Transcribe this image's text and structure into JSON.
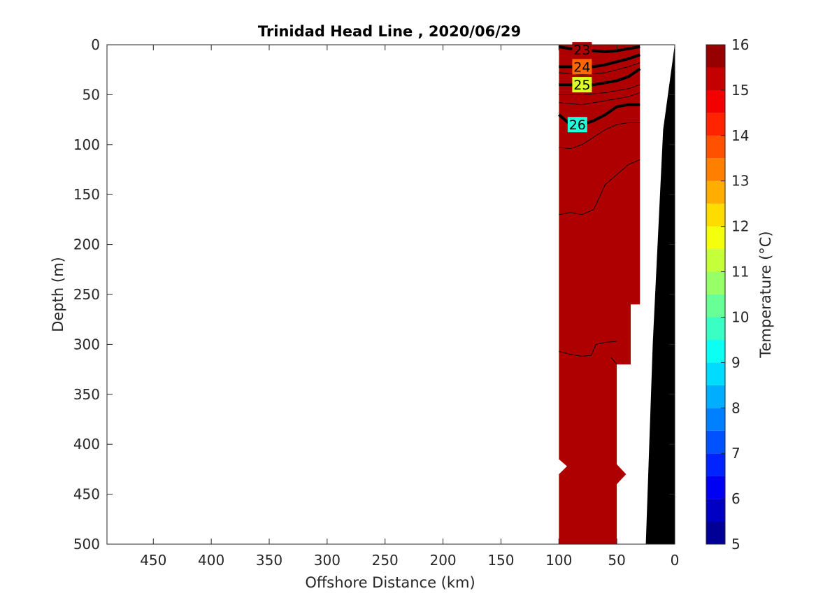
{
  "chart_data": {
    "type": "contour",
    "title": "Trinidad Head Line , 2020/06/29",
    "xlabel": "Offshore Distance (km)",
    "ylabel": "Depth (m)",
    "xlim": [
      490,
      0
    ],
    "ylim": [
      500,
      0
    ],
    "x_reversed": true,
    "y_reversed": true,
    "x_ticks": [
      "450",
      "400",
      "350",
      "300",
      "250",
      "200",
      "150",
      "100",
      "50",
      "0"
    ],
    "y_ticks": [
      "0",
      "50",
      "100",
      "150",
      "200",
      "250",
      "300",
      "350",
      "400",
      "450",
      "500"
    ],
    "colorbar": {
      "label": "Temperature (°C)",
      "min": 5,
      "max": 16,
      "ticks": [
        "5",
        "6",
        "7",
        "8",
        "9",
        "10",
        "11",
        "12",
        "13",
        "14",
        "15",
        "16"
      ],
      "colormap": "jet"
    },
    "temperature_bands": [
      {
        "min_t": 5.0,
        "max_t": 5.5,
        "top": [
          [
            100,
            450
          ],
          [
            80,
            455
          ],
          [
            60,
            460
          ],
          [
            50,
            465
          ]
        ],
        "bottom": 500
      },
      {
        "min_t": 5.5,
        "max_t": 6.0,
        "top": [
          [
            100,
            355
          ],
          [
            80,
            360
          ],
          [
            60,
            375
          ],
          [
            50,
            380
          ]
        ],
        "bottom_is_prev": true
      },
      {
        "min_t": 6.0,
        "max_t": 6.5,
        "top": [
          [
            100,
            275
          ],
          [
            80,
            280
          ],
          [
            60,
            285
          ],
          [
            50,
            295
          ]
        ],
        "bottom_is_prev": true
      },
      {
        "min_t": 6.5,
        "max_t": 7.0,
        "top": [
          [
            100,
            230
          ],
          [
            80,
            230
          ],
          [
            60,
            220
          ],
          [
            40,
            215
          ],
          [
            30,
            210
          ]
        ],
        "bottom_is_prev": true
      },
      {
        "min_t": 7.0,
        "max_t": 7.5,
        "top": [
          [
            100,
            185
          ],
          [
            80,
            185
          ],
          [
            60,
            175
          ],
          [
            40,
            150
          ],
          [
            30,
            145
          ]
        ],
        "bottom_is_prev": true
      },
      {
        "min_t": 7.5,
        "max_t": 8.0,
        "top": [
          [
            100,
            155
          ],
          [
            80,
            150
          ],
          [
            60,
            125
          ],
          [
            40,
            110
          ],
          [
            30,
            105
          ]
        ],
        "bottom_is_prev": true
      },
      {
        "min_t": 8.0,
        "max_t": 8.5,
        "top": [
          [
            100,
            125
          ],
          [
            80,
            120
          ],
          [
            60,
            100
          ],
          [
            40,
            90
          ],
          [
            30,
            85
          ]
        ],
        "bottom_is_prev": true
      },
      {
        "min_t": 8.5,
        "max_t": 9.0,
        "top": [
          [
            100,
            100
          ],
          [
            80,
            95
          ],
          [
            60,
            80
          ],
          [
            40,
            75
          ],
          [
            30,
            70
          ]
        ],
        "bottom_is_prev": true
      },
      {
        "min_t": 9.0,
        "max_t": 10.0,
        "top": [
          [
            100,
            80
          ],
          [
            80,
            75
          ],
          [
            60,
            60
          ],
          [
            40,
            55
          ],
          [
            30,
            50
          ]
        ],
        "bottom_is_prev": true
      },
      {
        "min_t": 10.0,
        "max_t": 11.0,
        "top": [
          [
            100,
            55
          ],
          [
            80,
            55
          ],
          [
            60,
            48
          ],
          [
            40,
            42
          ],
          [
            30,
            38
          ]
        ],
        "bottom_is_prev": true
      },
      {
        "min_t": 11.0,
        "max_t": 12.0,
        "top": [
          [
            100,
            42
          ],
          [
            80,
            42
          ],
          [
            60,
            36
          ],
          [
            40,
            30
          ],
          [
            30,
            26
          ]
        ],
        "bottom_is_prev": true
      },
      {
        "min_t": 12.0,
        "max_t": 13.0,
        "top": [
          [
            100,
            32
          ],
          [
            80,
            32
          ],
          [
            60,
            28
          ],
          [
            40,
            22
          ],
          [
            30,
            18
          ]
        ],
        "bottom_is_prev": true
      },
      {
        "min_t": 13.0,
        "max_t": 14.0,
        "top": [
          [
            100,
            25
          ],
          [
            80,
            25
          ],
          [
            60,
            20
          ],
          [
            40,
            15
          ],
          [
            30,
            12
          ]
        ],
        "bottom_is_prev": true
      },
      {
        "min_t": 14.0,
        "max_t": 15.0,
        "top": [
          [
            100,
            15
          ],
          [
            80,
            15
          ],
          [
            60,
            12
          ],
          [
            40,
            8
          ],
          [
            30,
            6
          ]
        ],
        "bottom_is_prev": true
      },
      {
        "min_t": 15.0,
        "max_t": 16.0,
        "top": [
          [
            100,
            0
          ],
          [
            30,
            0
          ]
        ],
        "bottom_is_prev": true
      }
    ],
    "data_domain": {
      "right_edge": [
        [
          30,
          0
        ],
        [
          30,
          260
        ],
        [
          38,
          260
        ],
        [
          38,
          320
        ],
        [
          50,
          320
        ],
        [
          50,
          420
        ],
        [
          42,
          430
        ],
        [
          50,
          440
        ],
        [
          50,
          500
        ]
      ],
      "left_edge": [
        [
          100,
          0
        ],
        [
          100,
          415
        ],
        [
          93,
          422
        ],
        [
          100,
          430
        ],
        [
          100,
          500
        ]
      ]
    },
    "bathymetry": [
      [
        0,
        0
      ],
      [
        10,
        85
      ],
      [
        19,
        300
      ],
      [
        25,
        500
      ]
    ],
    "density_contours": [
      {
        "label": "23",
        "bold": true,
        "points": [
          [
            100,
            2
          ],
          [
            90,
            4
          ],
          [
            80,
            6
          ],
          [
            70,
            6
          ],
          [
            60,
            7
          ],
          [
            50,
            6
          ],
          [
            40,
            4
          ],
          [
            30,
            2
          ]
        ],
        "label_pos": [
          80,
          5
        ]
      },
      {
        "label": "24",
        "bold": true,
        "points": [
          [
            100,
            22
          ],
          [
            90,
            22
          ],
          [
            80,
            22
          ],
          [
            70,
            22
          ],
          [
            60,
            20
          ],
          [
            50,
            17
          ],
          [
            40,
            14
          ],
          [
            30,
            10
          ]
        ],
        "label_pos": [
          80,
          22
        ]
      },
      {
        "label": "25",
        "bold": true,
        "points": [
          [
            100,
            40
          ],
          [
            90,
            40
          ],
          [
            80,
            40
          ],
          [
            70,
            40
          ],
          [
            60,
            38
          ],
          [
            50,
            36
          ],
          [
            40,
            32
          ],
          [
            30,
            24
          ]
        ],
        "label_pos": [
          80,
          40
        ]
      },
      {
        "label": "26",
        "bold": true,
        "points": [
          [
            100,
            70
          ],
          [
            90,
            80
          ],
          [
            80,
            80
          ],
          [
            70,
            76
          ],
          [
            60,
            70
          ],
          [
            50,
            62
          ],
          [
            40,
            60
          ],
          [
            30,
            60
          ]
        ],
        "label_pos": [
          84,
          80
        ]
      }
    ],
    "thin_contours": [
      [
        [
          100,
          28
        ],
        [
          80,
          30
        ],
        [
          60,
          28
        ],
        [
          40,
          22
        ],
        [
          30,
          18
        ]
      ],
      [
        [
          100,
          50
        ],
        [
          80,
          50
        ],
        [
          60,
          48
        ],
        [
          40,
          44
        ],
        [
          30,
          40
        ]
      ],
      [
        [
          100,
          58
        ],
        [
          80,
          60
        ],
        [
          60,
          56
        ],
        [
          40,
          52
        ],
        [
          30,
          48
        ]
      ],
      [
        [
          100,
          103
        ],
        [
          90,
          104
        ],
        [
          80,
          100
        ],
        [
          60,
          85
        ],
        [
          50,
          80
        ],
        [
          40,
          78
        ],
        [
          30,
          78
        ]
      ],
      [
        [
          100,
          170
        ],
        [
          90,
          168
        ],
        [
          80,
          170
        ],
        [
          70,
          165
        ],
        [
          60,
          140
        ],
        [
          50,
          130
        ],
        [
          40,
          120
        ],
        [
          30,
          115
        ]
      ],
      [
        [
          100,
          307
        ],
        [
          90,
          310
        ],
        [
          80,
          312
        ],
        [
          72,
          311
        ],
        [
          68,
          300
        ],
        [
          60,
          298
        ],
        [
          50,
          297
        ]
      ],
      [
        [
          55,
          313
        ],
        [
          50,
          320
        ]
      ]
    ]
  }
}
